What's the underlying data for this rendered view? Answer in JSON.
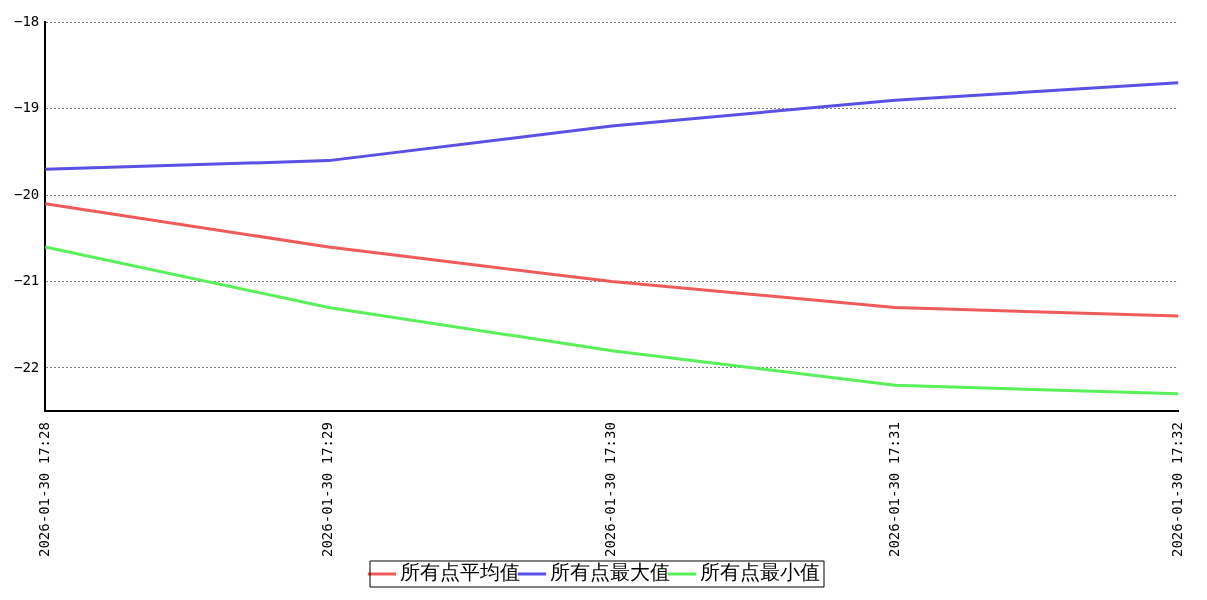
{
  "chart_data": {
    "type": "line",
    "categories": [
      "2026-01-30 17:28",
      "2026-01-30 17:29",
      "2026-01-30 17:30",
      "2026-01-30 17:31",
      "2026-01-30 17:32"
    ],
    "series": [
      {
        "name": "所有点平均值",
        "color": "#f05a5a",
        "values": [
          -20.1,
          -20.6,
          -21.0,
          -21.3,
          -21.4
        ]
      },
      {
        "name": "所有点最大值",
        "color": "#5a50e6",
        "values": [
          -19.7,
          -19.6,
          -19.2,
          -18.9,
          -18.7
        ]
      },
      {
        "name": "所有点最小值",
        "color": "#5af05a",
        "values": [
          -20.6,
          -21.3,
          -21.8,
          -22.2,
          -22.3
        ]
      }
    ],
    "ylim": [
      -22.5,
      -18
    ],
    "yticks": [
      -22,
      -21,
      -20,
      -19,
      -18
    ],
    "grid": "y",
    "legend": "bottom",
    "marker": "none",
    "line_style": "solid"
  }
}
